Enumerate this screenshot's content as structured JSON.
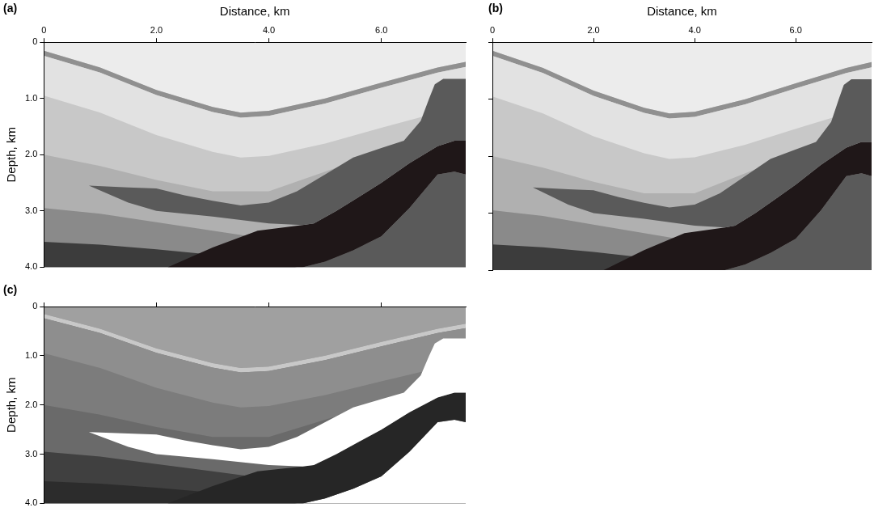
{
  "chart_data": [
    {
      "type": "polygon",
      "title": "(a)",
      "xlabel": "Distance, km",
      "ylabel": "Depth, km",
      "xlim": [
        0,
        7.5
      ],
      "ylim": [
        4,
        0
      ],
      "xticks": [
        0,
        {
          "value": 2,
          "label": "2.0"
        },
        {
          "value": 4,
          "label": "4.0"
        },
        {
          "value": 6,
          "label": "6.0"
        }
      ],
      "yticks": [
        0,
        {
          "value": 1,
          "label": "1.0"
        },
        {
          "value": 2,
          "label": "2.0"
        },
        {
          "value": 3,
          "label": "3.0"
        },
        {
          "value": 4,
          "label": "4.0"
        }
      ],
      "series": [
        {
          "color": "#c8c8c8",
          "x": [
            0,
            7.5,
            7.5,
            0
          ],
          "values": [
            0,
            0,
            4,
            4
          ]
        },
        {
          "color": "#ececec",
          "x": [
            0,
            7.5,
            7.5,
            7,
            6,
            5,
            4,
            3.5,
            3,
            2,
            1,
            0
          ],
          "values": [
            0,
            0,
            0.35,
            0.45,
            0.72,
            1.0,
            1.22,
            1.25,
            1.15,
            0.85,
            0.45,
            0.15
          ]
        },
        {
          "color": "#909090",
          "x": [
            0,
            1,
            2,
            3,
            3.5,
            4,
            5,
            6,
            7,
            7.5,
            7.5,
            7,
            6,
            5,
            4,
            3.5,
            3,
            2,
            1,
            0
          ],
          "values": [
            0.15,
            0.45,
            0.85,
            1.15,
            1.25,
            1.22,
            1.0,
            0.72,
            0.45,
            0.35,
            0.44,
            0.54,
            0.81,
            1.09,
            1.31,
            1.34,
            1.24,
            0.94,
            0.54,
            0.24
          ]
        },
        {
          "color": "#e2e2e2",
          "x": [
            0,
            1,
            2,
            3,
            3.5,
            4,
            5,
            6,
            7,
            7.5,
            7.5,
            7,
            6,
            5,
            4,
            3.5,
            3,
            2,
            1,
            0
          ],
          "values": [
            0.24,
            0.54,
            0.94,
            1.24,
            1.34,
            1.31,
            1.09,
            0.81,
            0.54,
            0.44,
            1.15,
            1.25,
            1.52,
            1.8,
            2.02,
            2.05,
            1.95,
            1.65,
            1.25,
            0.95
          ]
        },
        {
          "color": "#b0b0b0",
          "x": [
            0,
            1,
            2,
            3,
            4,
            5,
            6,
            7,
            7.5,
            7.5,
            0
          ],
          "values": [
            2.0,
            2.2,
            2.45,
            2.65,
            2.65,
            2.3,
            1.95,
            1.75,
            1.7,
            4,
            4
          ]
        },
        {
          "color": "#8a8a8a",
          "x": [
            0,
            1,
            2,
            3,
            4,
            5,
            7.5,
            7.5,
            0
          ],
          "values": [
            2.95,
            3.05,
            3.2,
            3.35,
            3.5,
            3.6,
            3.6,
            4,
            4
          ]
        },
        {
          "color": "#3c3c3c",
          "x": [
            0,
            1,
            2,
            3,
            4,
            4.5,
            0
          ],
          "values": [
            3.55,
            3.6,
            3.68,
            3.78,
            3.9,
            4.0,
            4.0
          ]
        },
        {
          "color": "#5a5a5a",
          "x": [
            4.6,
            5,
            5.5,
            6,
            6.5,
            7,
            7.3,
            7.5,
            7.5
          ],
          "values": [
            4.0,
            3.9,
            3.7,
            3.45,
            2.95,
            2.35,
            2.3,
            2.35,
            4.0
          ]
        },
        {
          "color": "#1f1718",
          "x": [
            2.2,
            3,
            3.8,
            4.6,
            4.8,
            5.2,
            5.6,
            6,
            6.5,
            7,
            7.3,
            7.5,
            7.5,
            7.3,
            7,
            6.5,
            6,
            5.5,
            5,
            4.6
          ],
          "values": [
            4.0,
            3.65,
            3.35,
            3.25,
            3.22,
            3.0,
            2.75,
            2.5,
            2.15,
            1.85,
            1.75,
            1.75,
            2.35,
            2.3,
            2.35,
            2.95,
            3.45,
            3.7,
            3.9,
            4.0
          ]
        },
        {
          "color": "#5a5a5a",
          "x": [
            0.8,
            1.5,
            2,
            2.5,
            3,
            3.5,
            4,
            4.5,
            5,
            5.5,
            6,
            6.4,
            6.7,
            6.85,
            6.95,
            7.1,
            7.5,
            7.5,
            7.3,
            7,
            6.5,
            6,
            5.6,
            5.2,
            4.8,
            4.6,
            4,
            3,
            2,
            1.5
          ],
          "values": [
            2.55,
            2.58,
            2.6,
            2.72,
            2.82,
            2.9,
            2.85,
            2.65,
            2.35,
            2.05,
            1.88,
            1.75,
            1.4,
            1.0,
            0.75,
            0.65,
            0.65,
            1.75,
            1.75,
            1.85,
            2.15,
            2.5,
            2.75,
            3.0,
            3.22,
            3.25,
            3.22,
            3.1,
            3.0,
            2.85
          ]
        }
      ]
    },
    {
      "type": "polygon",
      "title": "(b)",
      "xlabel": "Distance, km",
      "xlim": [
        0,
        7.5
      ],
      "ylim": [
        4,
        0
      ],
      "tick_labels": "x",
      "xticks": [
        0,
        {
          "value": 2,
          "label": "2.0"
        },
        {
          "value": 4,
          "label": "4.0"
        },
        {
          "value": 6,
          "label": "6.0"
        }
      ],
      "yticks": [
        0,
        1,
        2,
        3,
        4
      ],
      "series": [
        {
          "color": "#c8c8c8",
          "x": [
            0,
            7.5,
            7.5,
            0
          ],
          "values": [
            0,
            0,
            4,
            4
          ]
        },
        {
          "color": "#ececec",
          "x": [
            0,
            7.5,
            7.5,
            7,
            6,
            5,
            4,
            3.5,
            3,
            2,
            1,
            0
          ],
          "values": [
            0,
            0,
            0.35,
            0.45,
            0.72,
            1.0,
            1.22,
            1.25,
            1.15,
            0.85,
            0.45,
            0.15
          ]
        },
        {
          "color": "#909090",
          "x": [
            0,
            1,
            2,
            3,
            3.5,
            4,
            5,
            6,
            7,
            7.5,
            7.5,
            7,
            6,
            5,
            4,
            3.5,
            3,
            2,
            1,
            0
          ],
          "values": [
            0.15,
            0.45,
            0.85,
            1.15,
            1.25,
            1.22,
            1.0,
            0.72,
            0.45,
            0.35,
            0.44,
            0.54,
            0.81,
            1.09,
            1.31,
            1.34,
            1.24,
            0.94,
            0.54,
            0.24
          ]
        },
        {
          "color": "#e2e2e2",
          "x": [
            0,
            1,
            2,
            3,
            3.5,
            4,
            5,
            6,
            7,
            7.5,
            7.5,
            7,
            6,
            5,
            4,
            3.5,
            3,
            2,
            1,
            0
          ],
          "values": [
            0.24,
            0.54,
            0.94,
            1.24,
            1.34,
            1.31,
            1.09,
            0.81,
            0.54,
            0.44,
            1.15,
            1.25,
            1.52,
            1.8,
            2.02,
            2.05,
            1.95,
            1.65,
            1.25,
            0.95
          ]
        },
        {
          "color": "#b0b0b0",
          "x": [
            0,
            1,
            2,
            3,
            4,
            5,
            6,
            7,
            7.5,
            7.5,
            0
          ],
          "values": [
            2.0,
            2.2,
            2.45,
            2.65,
            2.65,
            2.3,
            1.95,
            1.75,
            1.7,
            4,
            4
          ]
        },
        {
          "color": "#8a8a8a",
          "x": [
            0,
            1,
            2,
            3,
            4,
            5,
            7.5,
            7.5,
            0
          ],
          "values": [
            2.95,
            3.05,
            3.2,
            3.35,
            3.5,
            3.6,
            3.6,
            4,
            4
          ]
        },
        {
          "color": "#3c3c3c",
          "x": [
            0,
            1,
            2,
            3,
            4,
            4.5,
            0
          ],
          "values": [
            3.55,
            3.6,
            3.68,
            3.78,
            3.9,
            4.0,
            4.0
          ]
        },
        {
          "color": "#5a5a5a",
          "x": [
            4.6,
            5,
            5.5,
            6,
            6.5,
            7,
            7.3,
            7.5,
            7.5
          ],
          "values": [
            4.0,
            3.9,
            3.7,
            3.45,
            2.95,
            2.35,
            2.3,
            2.35,
            4.0
          ]
        },
        {
          "color": "#1f1718",
          "x": [
            2.2,
            3,
            3.8,
            4.6,
            4.8,
            5.2,
            5.6,
            6,
            6.5,
            7,
            7.3,
            7.5,
            7.5,
            7.3,
            7,
            6.5,
            6,
            5.5,
            5,
            4.6
          ],
          "values": [
            4.0,
            3.65,
            3.35,
            3.25,
            3.22,
            3.0,
            2.75,
            2.5,
            2.15,
            1.85,
            1.75,
            1.75,
            2.35,
            2.3,
            2.35,
            2.95,
            3.45,
            3.7,
            3.9,
            4.0
          ]
        },
        {
          "color": "#5a5a5a",
          "x": [
            0.8,
            1.5,
            2,
            2.5,
            3,
            3.5,
            4,
            4.5,
            5,
            5.5,
            6,
            6.4,
            6.7,
            6.85,
            6.95,
            7.1,
            7.5,
            7.5,
            7.3,
            7,
            6.5,
            6,
            5.6,
            5.2,
            4.8,
            4.6,
            4,
            3,
            2,
            1.5
          ],
          "values": [
            2.55,
            2.58,
            2.6,
            2.72,
            2.82,
            2.9,
            2.85,
            2.65,
            2.35,
            2.05,
            1.88,
            1.75,
            1.4,
            1.0,
            0.75,
            0.65,
            0.65,
            1.75,
            1.75,
            1.85,
            2.15,
            2.5,
            2.75,
            3.0,
            3.22,
            3.25,
            3.22,
            3.1,
            3.0,
            2.85
          ]
        }
      ]
    },
    {
      "type": "polygon",
      "title": "(c)",
      "ylabel": "Depth, km",
      "xlim": [
        0,
        7.5
      ],
      "ylim": [
        4,
        0
      ],
      "tick_labels": "y",
      "xticks": [
        0,
        2,
        4,
        6
      ],
      "yticks": [
        0,
        {
          "value": 1,
          "label": "1.0"
        },
        {
          "value": 2,
          "label": "2.0"
        },
        {
          "value": 3,
          "label": "3.0"
        },
        {
          "value": 4,
          "label": "4.0"
        }
      ],
      "series": [
        {
          "color": "#7c7c7c",
          "x": [
            0,
            7.5,
            7.5,
            0
          ],
          "values": [
            0,
            0,
            4,
            4
          ]
        },
        {
          "color": "#a0a0a0",
          "x": [
            0,
            7.5,
            7.5,
            7,
            6,
            5,
            4,
            3.5,
            3,
            2,
            1,
            0
          ],
          "values": [
            0,
            0,
            0.35,
            0.45,
            0.72,
            1.0,
            1.22,
            1.25,
            1.15,
            0.85,
            0.45,
            0.15
          ]
        },
        {
          "color": "#c8c8c8",
          "x": [
            0,
            1,
            2,
            3,
            3.5,
            4,
            5,
            6,
            7,
            7.5,
            7.5,
            7,
            6,
            5,
            4,
            3.5,
            3,
            2,
            1,
            0
          ],
          "values": [
            0.15,
            0.45,
            0.85,
            1.15,
            1.25,
            1.22,
            1.0,
            0.72,
            0.45,
            0.35,
            0.44,
            0.54,
            0.81,
            1.09,
            1.31,
            1.34,
            1.24,
            0.94,
            0.54,
            0.24
          ]
        },
        {
          "color": "#8e8e8e",
          "x": [
            0,
            1,
            2,
            3,
            3.5,
            4,
            5,
            6,
            7,
            7.5,
            7.5,
            7,
            6,
            5,
            4,
            3.5,
            3,
            2,
            1,
            0
          ],
          "values": [
            0.24,
            0.54,
            0.94,
            1.24,
            1.34,
            1.31,
            1.09,
            0.81,
            0.54,
            0.44,
            1.15,
            1.25,
            1.52,
            1.8,
            2.02,
            2.05,
            1.95,
            1.65,
            1.25,
            0.95
          ]
        },
        {
          "color": "#6a6a6a",
          "x": [
            0,
            1,
            2,
            3,
            4,
            5,
            6,
            7,
            7.5,
            7.5,
            0
          ],
          "values": [
            2.0,
            2.2,
            2.45,
            2.65,
            2.65,
            2.3,
            1.95,
            1.75,
            1.7,
            4,
            4
          ]
        },
        {
          "color": "#404040",
          "x": [
            0,
            1,
            2,
            3,
            4,
            5,
            7.5,
            7.5,
            0
          ],
          "values": [
            2.95,
            3.05,
            3.2,
            3.35,
            3.5,
            3.6,
            3.6,
            4,
            4
          ]
        },
        {
          "color": "#2c2c2c",
          "x": [
            0,
            1,
            2,
            3,
            4,
            4.5,
            0
          ],
          "values": [
            3.55,
            3.6,
            3.68,
            3.78,
            3.9,
            4.0,
            4.0
          ]
        },
        {
          "color": "#ffffff",
          "x": [
            4.6,
            5,
            5.5,
            6,
            6.5,
            7,
            7.3,
            7.5,
            7.5
          ],
          "values": [
            4.0,
            3.9,
            3.7,
            3.45,
            2.95,
            2.35,
            2.3,
            2.35,
            4.0
          ]
        },
        {
          "color": "#262626",
          "x": [
            2.2,
            3,
            3.8,
            4.6,
            4.8,
            5.2,
            5.6,
            6,
            6.5,
            7,
            7.3,
            7.5,
            7.5,
            7.3,
            7,
            6.5,
            6,
            5.5,
            5,
            4.6
          ],
          "values": [
            4.0,
            3.65,
            3.35,
            3.25,
            3.22,
            3.0,
            2.75,
            2.5,
            2.15,
            1.85,
            1.75,
            1.75,
            2.35,
            2.3,
            2.35,
            2.95,
            3.45,
            3.7,
            3.9,
            4.0
          ]
        },
        {
          "color": "#ffffff",
          "x": [
            0.8,
            1.5,
            2,
            2.5,
            3,
            3.5,
            4,
            4.5,
            5,
            5.5,
            6,
            6.4,
            6.7,
            6.85,
            6.95,
            7.1,
            7.5,
            7.5,
            7.3,
            7,
            6.5,
            6,
            5.6,
            5.2,
            4.8,
            4.6,
            4,
            3,
            2,
            1.5
          ],
          "values": [
            2.55,
            2.58,
            2.6,
            2.72,
            2.82,
            2.9,
            2.85,
            2.65,
            2.35,
            2.05,
            1.88,
            1.75,
            1.4,
            1.0,
            0.75,
            0.65,
            0.65,
            1.75,
            1.75,
            1.85,
            2.15,
            2.5,
            2.75,
            3.0,
            3.22,
            3.25,
            3.22,
            3.1,
            3.0,
            2.85
          ]
        }
      ]
    }
  ]
}
